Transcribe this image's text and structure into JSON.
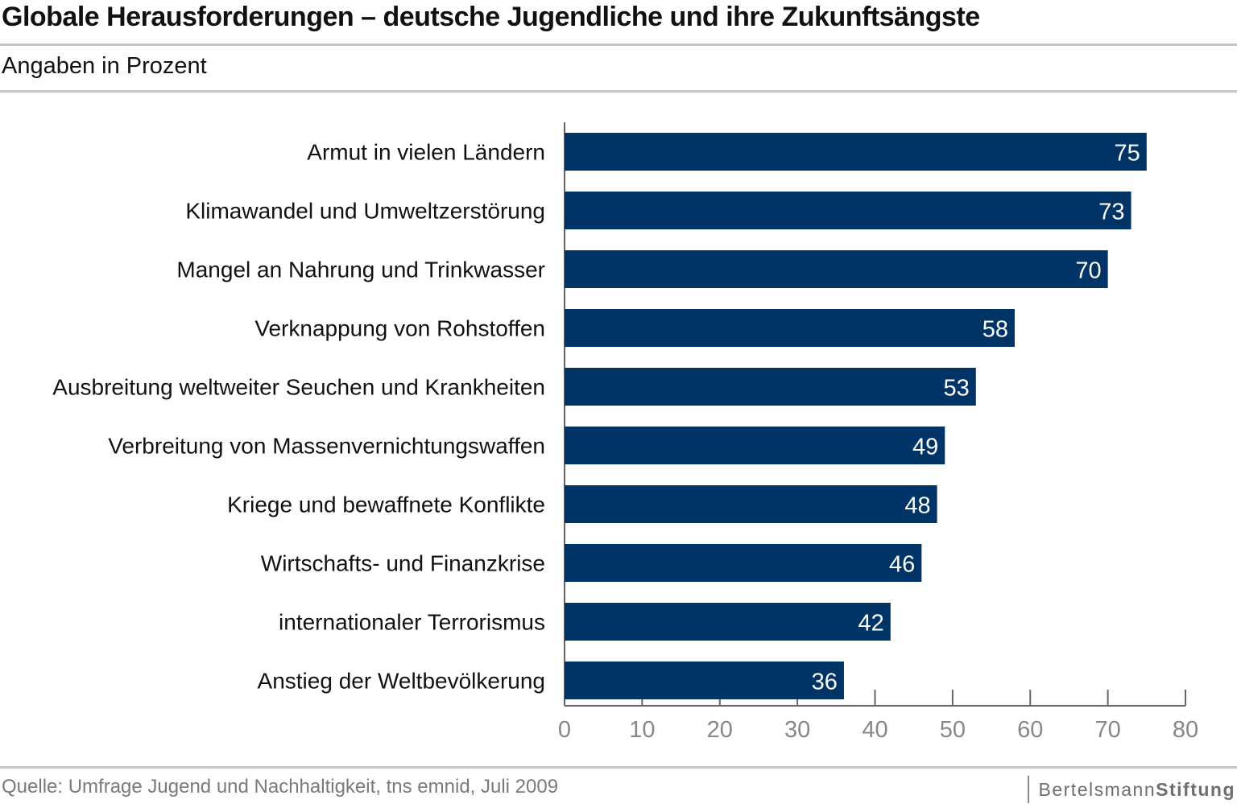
{
  "header": {
    "title": "Globale Herausforderungen – deutsche Jugendliche und ihre Zukunftsängste",
    "subtitle": "Angaben in Prozent"
  },
  "footer": {
    "source": "Quelle: Umfrage Jugend und Nachhaltigkeit, tns emnid, Juli 2009",
    "logo_part1": "Bertelsmann",
    "logo_part2": "Stiftung"
  },
  "colors": {
    "bar": "#003366",
    "bar_label": "#ffffff",
    "axis": "#666666",
    "tick_label": "#888888",
    "category_label": "#111111"
  },
  "chart_data": {
    "type": "bar",
    "orientation": "horizontal",
    "title": "Globale Herausforderungen – deutsche Jugendliche und ihre Zukunftsängste",
    "subtitle": "Angaben in Prozent",
    "categories": [
      "Armut in vielen Ländern",
      "Klimawandel und Umweltzerstörung",
      "Mangel an Nahrung und Trinkwasser",
      "Verknappung von Rohstoffen",
      "Ausbreitung weltweiter Seuchen und Krankheiten",
      "Verbreitung von Massenvernichtungswaffen",
      "Kriege und bewaffnete Konflikte",
      "Wirtschafts- und Finanzkrise",
      "internationaler Terrorismus",
      "Anstieg der Weltbevölkerung"
    ],
    "values": [
      75,
      73,
      70,
      58,
      53,
      49,
      48,
      46,
      42,
      36
    ],
    "xlim": [
      0,
      80
    ],
    "xticks": [
      0,
      10,
      20,
      30,
      40,
      50,
      60,
      70,
      80
    ],
    "grid": false,
    "data_labels": true
  }
}
